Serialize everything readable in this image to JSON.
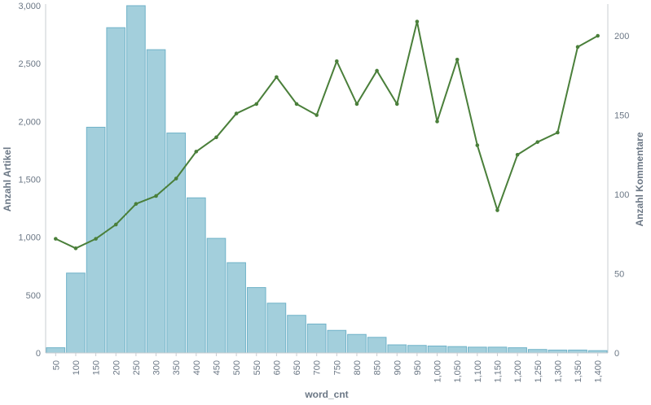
{
  "chart_data": {
    "type": "bar+line",
    "categories": [
      "50",
      "100",
      "150",
      "200",
      "250",
      "300",
      "350",
      "400",
      "450",
      "500",
      "550",
      "600",
      "650",
      "700",
      "750",
      "800",
      "850",
      "900",
      "950",
      "1,000",
      "1,050",
      "1,100",
      "1,150",
      "1,200",
      "1,250",
      "1,300",
      "1,350",
      "1,400"
    ],
    "xlabel": "word_cnt",
    "y_left": {
      "label": "Anzahl Artikel",
      "ylim": [
        0,
        3000
      ],
      "ticks": [
        "0",
        "500",
        "1,000",
        "1,500",
        "2,000",
        "2,500",
        "3,000"
      ],
      "tick_values": [
        0,
        500,
        1000,
        1500,
        2000,
        2500,
        3000
      ]
    },
    "y_right": {
      "label": "Anzahl Kommentare",
      "ylim": [
        0,
        219
      ],
      "ticks": [
        "0",
        "50",
        "100",
        "150",
        "200"
      ],
      "tick_values": [
        0,
        50,
        100,
        150,
        200
      ]
    },
    "series": [
      {
        "type": "bar",
        "axis": "left",
        "values": [
          45,
          690,
          1950,
          2810,
          3000,
          2620,
          1900,
          1340,
          990,
          780,
          565,
          430,
          325,
          250,
          195,
          160,
          135,
          70,
          65,
          60,
          55,
          50,
          50,
          45,
          30,
          25,
          25,
          20
        ]
      },
      {
        "type": "line",
        "axis": "right",
        "values": [
          72,
          66,
          72,
          81,
          94,
          99,
          110,
          127,
          136,
          151,
          157,
          174,
          157,
          150,
          184,
          157,
          178,
          157,
          209,
          146,
          185,
          131,
          90,
          125,
          133,
          139,
          193,
          200
        ]
      }
    ],
    "colors": {
      "bar_fill": "#a3cfdc",
      "bar_stroke": "#6fb2c8",
      "line": "#4a7f3a",
      "text": "#6b7785"
    },
    "grid": false
  }
}
